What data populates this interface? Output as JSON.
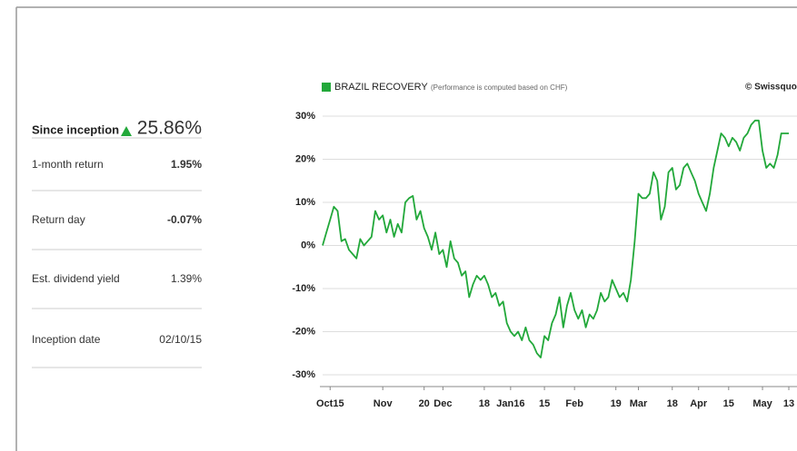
{
  "summary": {
    "label": "Since inception",
    "value": "25.86%"
  },
  "stats": [
    {
      "label": "1-month return",
      "value": "1.95%"
    },
    {
      "label": "Return day",
      "value": "-0.07%"
    },
    {
      "label": "Est. dividend yield",
      "value": "1.39%"
    },
    {
      "label": "Inception date",
      "value": "02/10/15"
    }
  ],
  "chart_data": {
    "type": "line",
    "title": "BRAZIL RECOVERY",
    "subtitle": "(Performance is computed based on CHF)",
    "credit": "© Swissquote",
    "series": [
      {
        "name": "BRAZIL RECOVERY",
        "color": "#22a83a",
        "values": [
          0,
          3,
          6,
          9,
          8,
          1,
          1.5,
          -1,
          -2,
          -3,
          1.5,
          0,
          1,
          2,
          8,
          6,
          7,
          3,
          6,
          2,
          5,
          3,
          10,
          11,
          11.5,
          6,
          8,
          4,
          2,
          -1,
          3,
          -2,
          -1,
          -5,
          1,
          -3,
          -4,
          -7,
          -6,
          -12,
          -9,
          -7,
          -8,
          -7,
          -9,
          -12,
          -11,
          -14,
          -13,
          -18,
          -20,
          -21,
          -20,
          -22,
          -19,
          -22,
          -23,
          -25,
          -26,
          -21,
          -22,
          -18,
          -16,
          -12,
          -19,
          -14,
          -11,
          -15,
          -17,
          -15,
          -19,
          -16,
          -17,
          -15,
          -11,
          -13,
          -12,
          -8,
          -10,
          -12,
          -11,
          -13,
          -8,
          1,
          12,
          11,
          11,
          12,
          17,
          15,
          6,
          9,
          17,
          18,
          13,
          14,
          18,
          19,
          17,
          15,
          12,
          10,
          8,
          12,
          18,
          22,
          26,
          25,
          23,
          25,
          24,
          22,
          25,
          26,
          28,
          29,
          29,
          22,
          18,
          19,
          18,
          21,
          26,
          26,
          26
        ]
      }
    ],
    "xlim": [
      0,
      124
    ],
    "xticks": [
      {
        "value": 2,
        "label": "Oct15"
      },
      {
        "value": 16,
        "label": "Nov"
      },
      {
        "value": 27,
        "label": "20"
      },
      {
        "value": 32,
        "label": "Dec"
      },
      {
        "value": 43,
        "label": "18"
      },
      {
        "value": 50,
        "label": "Jan16"
      },
      {
        "value": 59,
        "label": "15"
      },
      {
        "value": 67,
        "label": "Feb"
      },
      {
        "value": 78,
        "label": "19"
      },
      {
        "value": 84,
        "label": "Mar"
      },
      {
        "value": 93,
        "label": "18"
      },
      {
        "value": 100,
        "label": "Apr"
      },
      {
        "value": 108,
        "label": "15"
      },
      {
        "value": 117,
        "label": "May"
      },
      {
        "value": 124,
        "label": "13"
      }
    ],
    "ylim": [
      -30,
      30
    ],
    "yticks": [
      {
        "value": -30,
        "label": "-30%"
      },
      {
        "value": -20,
        "label": "-20%"
      },
      {
        "value": -10,
        "label": "-10%"
      },
      {
        "value": 0,
        "label": "0%"
      },
      {
        "value": 10,
        "label": "10%"
      },
      {
        "value": 20,
        "label": "20%"
      },
      {
        "value": 30,
        "label": "30%"
      }
    ],
    "grid": true
  }
}
